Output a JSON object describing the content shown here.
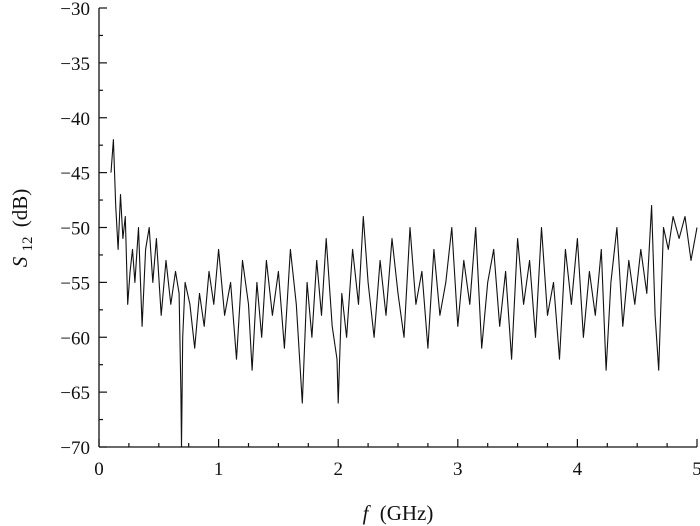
{
  "chart_data": {
    "type": "line",
    "title": "",
    "xlabel_var": "f",
    "xlabel_unit": "(GHz)",
    "ylabel_var": "S",
    "ylabel_sub": "12",
    "ylabel_unit": "(dB)",
    "xlim": [
      0,
      5
    ],
    "ylim": [
      -70,
      -30
    ],
    "x_ticks": [
      0,
      1,
      2,
      3,
      4,
      5
    ],
    "y_ticks": [
      -70,
      -65,
      -60,
      -55,
      -50,
      -45,
      -40,
      -35,
      -30
    ],
    "x_minor_step": 0.25,
    "y_minor_step": 2.5,
    "grid": false,
    "legend": "none",
    "line_color": "#111111",
    "series": [
      {
        "x": [
          0.1,
          0.12,
          0.14,
          0.16,
          0.18,
          0.2,
          0.22,
          0.24,
          0.26,
          0.28,
          0.3,
          0.33,
          0.36,
          0.39,
          0.42,
          0.45,
          0.48,
          0.52,
          0.56,
          0.6,
          0.64,
          0.67,
          0.685,
          0.69,
          0.7,
          0.72,
          0.76,
          0.8,
          0.84,
          0.88,
          0.92,
          0.96,
          1.0,
          1.05,
          1.1,
          1.15,
          1.2,
          1.25,
          1.28,
          1.32,
          1.36,
          1.4,
          1.45,
          1.5,
          1.55,
          1.6,
          1.65,
          1.7,
          1.74,
          1.78,
          1.82,
          1.86,
          1.9,
          1.95,
          1.99,
          2.0,
          2.03,
          2.07,
          2.12,
          2.17,
          2.21,
          2.25,
          2.3,
          2.35,
          2.4,
          2.45,
          2.5,
          2.55,
          2.6,
          2.65,
          2.7,
          2.75,
          2.8,
          2.85,
          2.9,
          2.95,
          3.0,
          3.05,
          3.1,
          3.15,
          3.2,
          3.25,
          3.3,
          3.35,
          3.4,
          3.45,
          3.5,
          3.55,
          3.6,
          3.65,
          3.7,
          3.75,
          3.8,
          3.85,
          3.9,
          3.95,
          4.0,
          4.05,
          4.1,
          4.15,
          4.2,
          4.24,
          4.28,
          4.33,
          4.38,
          4.43,
          4.48,
          4.53,
          4.58,
          4.62,
          4.65,
          4.68,
          4.72,
          4.76,
          4.8,
          4.85,
          4.9,
          4.95,
          5.0
        ],
        "y": [
          -45,
          -42,
          -48,
          -52,
          -47,
          -51,
          -49,
          -57,
          -54,
          -52,
          -55,
          -50,
          -59,
          -52,
          -50,
          -55,
          -51,
          -58,
          -53,
          -57,
          -54,
          -56,
          -65,
          -70,
          -60,
          -55,
          -57,
          -61,
          -56,
          -59,
          -54,
          -57,
          -52,
          -58,
          -55,
          -62,
          -53,
          -57,
          -63,
          -55,
          -60,
          -53,
          -58,
          -54,
          -61,
          -52,
          -57,
          -66,
          -55,
          -60,
          -53,
          -58,
          -51,
          -59,
          -62,
          -66,
          -56,
          -60,
          -52,
          -57,
          -49,
          -55,
          -60,
          -53,
          -58,
          -51,
          -56,
          -60,
          -50,
          -57,
          -54,
          -61,
          -52,
          -58,
          -55,
          -50,
          -59,
          -53,
          -57,
          -50,
          -61,
          -55,
          -52,
          -59,
          -54,
          -62,
          -51,
          -57,
          -53,
          -60,
          -50,
          -58,
          -55,
          -62,
          -52,
          -57,
          -51,
          -60,
          -54,
          -58,
          -52,
          -63,
          -55,
          -50,
          -59,
          -53,
          -57,
          -52,
          -56,
          -48,
          -58,
          -63,
          -50,
          -52,
          -49,
          -51,
          -49,
          -53,
          -50
        ]
      }
    ]
  }
}
